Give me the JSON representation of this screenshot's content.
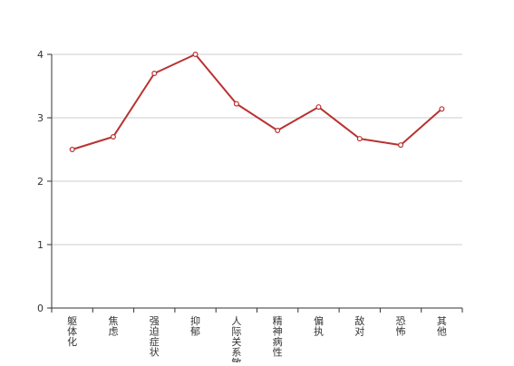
{
  "chart_data": {
    "type": "line",
    "title": "",
    "xlabel": "",
    "ylabel": "",
    "ylim": [
      0,
      4
    ],
    "y_ticks": [
      "0",
      "1",
      "2",
      "3",
      "4"
    ],
    "grid": true,
    "categories": [
      "躯体化",
      "焦虑",
      "强迫症状",
      "抑郁",
      "人际关系敏感",
      "精神病性",
      "偏执",
      "敌对",
      "恐怖",
      "其他"
    ],
    "series": [
      {
        "color": "#b83232",
        "values": [
          2.5,
          2.7,
          3.7,
          4.0,
          3.22,
          2.8,
          3.17,
          2.67,
          2.57,
          3.14
        ]
      }
    ]
  }
}
